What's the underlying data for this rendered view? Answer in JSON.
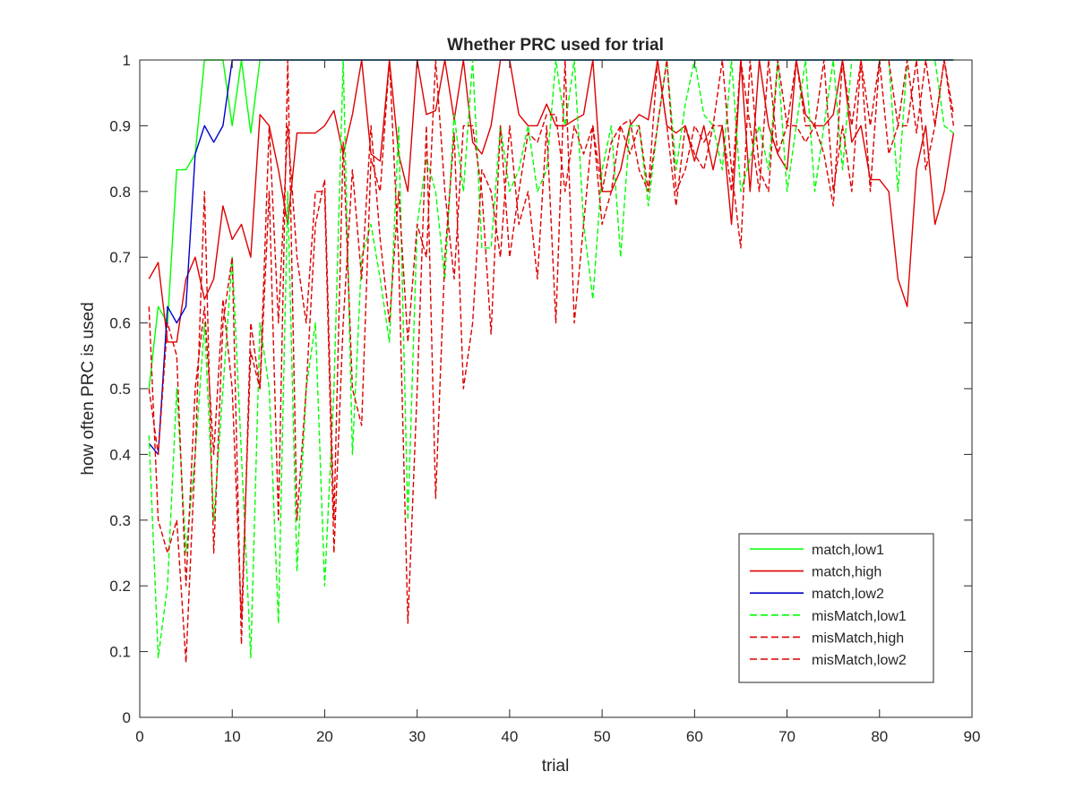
{
  "chart_data": {
    "type": "line",
    "title": "Whether PRC used for trial",
    "xlabel": "trial",
    "ylabel": "how often PRC is used",
    "xlim": [
      0,
      90
    ],
    "ylim": [
      0,
      1
    ],
    "xticks": [
      0,
      10,
      20,
      30,
      40,
      50,
      60,
      70,
      80,
      90
    ],
    "yticks": [
      0,
      0.1,
      0.2,
      0.3,
      0.4,
      0.5,
      0.6,
      0.7,
      0.8,
      0.9,
      1
    ],
    "xtick_labels": [
      "0",
      "10",
      "20",
      "30",
      "40",
      "50",
      "60",
      "70",
      "80",
      "90"
    ],
    "ytick_labels": [
      "0",
      "0.1",
      "0.2",
      "0.3",
      "0.4",
      "0.5",
      "0.6",
      "0.7",
      "0.8",
      "0.9",
      "1"
    ],
    "grid": false,
    "legend_position": "bottom-right",
    "series": [
      {
        "name": "match,low1",
        "color": "#00ff00",
        "dash": "solid",
        "x": [
          1,
          2,
          3,
          4,
          5,
          6,
          7,
          8,
          9,
          10,
          11,
          12,
          13,
          14,
          15,
          16,
          17,
          18,
          19,
          20,
          21,
          22,
          23,
          24,
          25,
          26,
          27,
          28,
          29,
          30,
          31,
          32,
          33,
          34,
          35,
          36,
          37,
          38,
          39,
          40,
          41,
          42,
          43,
          44,
          45,
          46,
          47,
          48,
          49,
          50,
          51,
          52,
          53,
          54,
          55,
          56,
          57,
          58,
          59,
          60,
          61,
          62,
          63,
          64,
          65,
          66,
          67,
          68,
          69,
          70,
          71,
          72,
          73,
          74,
          75,
          76,
          77,
          78,
          79,
          80,
          81,
          82,
          83,
          84,
          85,
          86,
          87,
          88
        ],
        "y": [
          0.5,
          0.625,
          0.6,
          0.833,
          0.833,
          0.857,
          1,
          1,
          1,
          0.9,
          1,
          0.889,
          1,
          1,
          1,
          1,
          1,
          1,
          1,
          1,
          1,
          1,
          1,
          1,
          1,
          1,
          1,
          1,
          1,
          1,
          1,
          1,
          1,
          1,
          1,
          1,
          1,
          1,
          1,
          1,
          1,
          1,
          1,
          1,
          1,
          1,
          1,
          1,
          1,
          1,
          1,
          1,
          1,
          1,
          1,
          1,
          1,
          1,
          1,
          1,
          1,
          1,
          1,
          1,
          1,
          1,
          1,
          1,
          1,
          1,
          1,
          1,
          1,
          1,
          1,
          1,
          1,
          1,
          1,
          1,
          1,
          1,
          1,
          1,
          1,
          1,
          1,
          1
        ]
      },
      {
        "name": "match,high",
        "color": "#dd0000",
        "dash": "solid",
        "x": [
          1,
          2,
          3,
          4,
          5,
          6,
          7,
          8,
          9,
          10,
          11,
          12,
          13,
          14,
          15,
          16,
          17,
          18,
          19,
          20,
          21,
          22,
          23,
          24,
          25,
          26,
          27,
          28,
          29,
          30,
          31,
          32,
          33,
          34,
          35,
          36,
          37,
          38,
          39,
          40,
          41,
          42,
          43,
          44,
          45,
          46,
          47,
          48,
          49,
          50,
          51,
          52,
          53,
          54,
          55,
          56,
          57,
          58,
          59,
          60,
          61,
          62,
          63,
          64,
          65,
          66,
          67,
          68,
          69,
          70,
          71,
          72,
          73,
          74,
          75,
          76,
          77,
          78,
          79,
          80,
          81,
          82,
          83,
          84,
          85,
          86,
          87,
          88
        ],
        "y": [
          0.667,
          0.692,
          0.571,
          0.571,
          0.667,
          0.7,
          0.636,
          0.667,
          0.778,
          0.727,
          0.75,
          0.7,
          0.917,
          0.9,
          0.833,
          0.75,
          0.889,
          0.889,
          0.889,
          0.9,
          0.923,
          0.857,
          0.917,
          1,
          0.857,
          0.846,
          1,
          0.857,
          0.8,
          1,
          0.917,
          0.923,
          1,
          0.909,
          1,
          0.875,
          0.857,
          0.9,
          1,
          1,
          0.917,
          0.9,
          0.9,
          0.933,
          0.9,
          0.9,
          0.909,
          0.917,
          1,
          0.8,
          0.8,
          0.833,
          0.9,
          0.917,
          0.909,
          1,
          0.9,
          0.889,
          0.9,
          0.846,
          0.9,
          0.833,
          0.9,
          0.75,
          1,
          0.8,
          1,
          0.9,
          0.857,
          0.833,
          1,
          0.917,
          0.9,
          0.9,
          0.917,
          1,
          0.875,
          0.9,
          0.818,
          0.818,
          0.8,
          0.667,
          0.625,
          0.833,
          0.9,
          0.75,
          0.8,
          0.889
        ]
      },
      {
        "name": "match,low2",
        "color": "#0000cc",
        "dash": "solid",
        "x": [
          1,
          2,
          3,
          4,
          5,
          6,
          7,
          8,
          9,
          10,
          11,
          12,
          13,
          14,
          15,
          16,
          17,
          18,
          19,
          20,
          21,
          22,
          23,
          24,
          25,
          26,
          27,
          28,
          29,
          30,
          31,
          32,
          33,
          34,
          35,
          36,
          37,
          38,
          39,
          40,
          41,
          42,
          43,
          44,
          45,
          46,
          47,
          48,
          49,
          50,
          51,
          52,
          53,
          54,
          55,
          56,
          57,
          58,
          59,
          60,
          61,
          62,
          63,
          64,
          65,
          66,
          67,
          68,
          69,
          70,
          71,
          72,
          73,
          74,
          75,
          76,
          77,
          78,
          79,
          80,
          81,
          82,
          83,
          84,
          85,
          86,
          87,
          88
        ],
        "y": [
          0.417,
          0.4,
          0.625,
          0.6,
          0.625,
          0.857,
          0.9,
          0.875,
          0.9,
          1,
          1,
          1,
          1,
          1,
          1,
          1,
          1,
          1,
          1,
          1,
          1,
          1,
          1,
          1,
          1,
          1,
          1,
          1,
          1,
          1,
          1,
          1,
          1,
          1,
          1,
          1,
          1,
          1,
          1,
          1,
          1,
          1,
          1,
          1,
          1,
          1,
          1,
          1,
          1,
          1,
          1,
          1,
          1,
          1,
          1,
          1,
          1,
          1,
          1,
          1,
          1,
          1,
          1,
          1,
          1,
          1,
          1,
          1,
          1,
          1,
          1,
          1,
          1,
          1,
          1,
          1,
          1,
          1,
          1,
          1,
          1,
          1,
          1,
          1,
          1,
          1,
          1,
          1
        ]
      },
      {
        "name": "misMatch,low1",
        "color": "#00ff00",
        "dash": "dashed",
        "x": [
          1,
          2,
          3,
          4,
          5,
          6,
          7,
          8,
          9,
          10,
          11,
          12,
          13,
          14,
          15,
          16,
          17,
          18,
          19,
          20,
          21,
          22,
          23,
          24,
          25,
          26,
          27,
          28,
          29,
          30,
          31,
          32,
          33,
          34,
          35,
          36,
          37,
          38,
          39,
          40,
          41,
          42,
          43,
          44,
          45,
          46,
          47,
          48,
          49,
          50,
          51,
          52,
          53,
          54,
          55,
          56,
          57,
          58,
          59,
          60,
          61,
          62,
          63,
          64,
          65,
          66,
          67,
          68,
          69,
          70,
          71,
          72,
          73,
          74,
          75,
          76,
          77,
          78,
          79,
          80,
          81,
          82,
          83,
          84,
          85,
          86,
          87,
          88
        ],
        "y": [
          0.429,
          0.0909,
          0.2,
          0.5,
          0.25,
          0.4,
          0.6,
          0.3,
          0.5,
          0.7,
          0.4,
          0.0909,
          0.6,
          0.5,
          0.143,
          0.8,
          0.222,
          0.5,
          0.6,
          0.2,
          0.5,
          1,
          0.4,
          0.7,
          0.75,
          0.667,
          0.571,
          0.9,
          0.3,
          0.75,
          0.85,
          0.8,
          0.667,
          0.917,
          0.8,
          1,
          0.714,
          0.714,
          0.9,
          0.8,
          0.833,
          0.9,
          0.8,
          0.833,
          1,
          0.9,
          1,
          0.75,
          0.636,
          0.833,
          0.9,
          0.7,
          0.9,
          0.9,
          0.778,
          0.9,
          1,
          0.833,
          0.933,
          1,
          0.917,
          0.9,
          0.833,
          1,
          0.8,
          0.85,
          0.9,
          0.833,
          1,
          0.8,
          0.9,
          1,
          0.8,
          0.9,
          1,
          0.833,
          1,
          1,
          1,
          1,
          1,
          0.8,
          1,
          1,
          1,
          1,
          0.9,
          0.889
        ]
      },
      {
        "name": "misMatch,high",
        "color": "#dd0000",
        "dash": "dashed",
        "x": [
          1,
          2,
          3,
          4,
          5,
          6,
          7,
          8,
          9,
          10,
          11,
          12,
          13,
          14,
          15,
          16,
          17,
          18,
          19,
          20,
          21,
          22,
          23,
          24,
          25,
          26,
          27,
          28,
          29,
          30,
          31,
          32,
          33,
          34,
          35,
          36,
          37,
          38,
          39,
          40,
          41,
          42,
          43,
          44,
          45,
          46,
          47,
          48,
          49,
          50,
          51,
          52,
          53,
          54,
          55,
          56,
          57,
          58,
          59,
          60,
          61,
          62,
          63,
          64,
          65,
          66,
          67,
          68,
          69,
          70,
          71,
          72,
          73,
          74,
          75,
          76,
          77,
          78,
          79,
          80,
          81,
          82,
          83,
          84,
          85,
          86,
          87,
          88
        ],
        "y": [
          0.625,
          0.3,
          0.25,
          0.3,
          0.0833,
          0.4,
          0.8,
          0.25,
          0.6,
          0.7,
          0.111,
          0.6,
          0.5,
          0.8,
          0.3,
          1,
          0.3,
          0.5,
          0.75,
          0.818,
          0.3,
          0.875,
          0.5,
          0.444,
          0.85,
          0.8,
          1,
          0.7,
          0.143,
          0.5,
          0.9,
          0.333,
          0.7,
          0.889,
          0.5,
          0.6,
          0.833,
          0.8,
          0.7,
          0.9,
          0.75,
          0.8,
          0.667,
          0.9,
          0.6,
          1,
          0.6,
          0.75,
          0.9,
          0.8,
          0.875,
          0.9,
          0.909,
          0.833,
          0.8,
          1,
          0.9,
          0.778,
          0.9,
          0.857,
          0.833,
          0.9,
          1,
          0.833,
          0.714,
          1,
          0.833,
          0.8,
          1,
          0.9,
          1,
          0.9,
          0.9,
          0.857,
          0.778,
          1,
          0.9,
          1,
          0.8,
          1,
          1,
          0.9,
          1,
          0.889,
          1,
          0.9,
          1,
          0.917
        ]
      },
      {
        "name": "misMatch,low2",
        "color": "#dd0000",
        "dash": "dashed",
        "x": [
          1,
          2,
          3,
          4,
          5,
          6,
          7,
          8,
          9,
          10,
          11,
          12,
          13,
          14,
          15,
          16,
          17,
          18,
          19,
          20,
          21,
          22,
          23,
          24,
          25,
          26,
          27,
          28,
          29,
          30,
          31,
          32,
          33,
          34,
          35,
          36,
          37,
          38,
          39,
          40,
          41,
          42,
          43,
          44,
          45,
          46,
          47,
          48,
          49,
          50,
          51,
          52,
          53,
          54,
          55,
          56,
          57,
          58,
          59,
          60,
          61,
          62,
          63,
          64,
          65,
          66,
          67,
          68,
          69,
          70,
          71,
          72,
          73,
          74,
          75,
          76,
          77,
          78,
          79,
          80,
          81,
          82,
          83,
          84,
          85,
          86,
          87,
          88
        ],
        "y": [
          0.5,
          0.4,
          0.6,
          0.55,
          0.2,
          0.5,
          0.625,
          0.4,
          0.636,
          0.5,
          0.15,
          0.556,
          0.5,
          0.9,
          0.6,
          0.9,
          0.7,
          0.6,
          0.8,
          0.8,
          0.25,
          0.6,
          0.833,
          0.667,
          0.9,
          0.727,
          0.6,
          0.8,
          0.571,
          0.75,
          0.7,
          1,
          0.8,
          0.667,
          0.9,
          0.9,
          0.8,
          0.583,
          0.9,
          0.7,
          0.8,
          0.889,
          0.875,
          0.917,
          0.917,
          0.8,
          0.9,
          0.857,
          0.9,
          0.75,
          0.8,
          0.9,
          0.857,
          0.9,
          0.8,
          0.9,
          1,
          0.8,
          0.833,
          0.9,
          0.875,
          0.9,
          0.9,
          0.8,
          1,
          0.9,
          0.8,
          1,
          0.857,
          0.9,
          0.9,
          0.875,
          0.9,
          1,
          0.8,
          0.9,
          0.8,
          1,
          0.9,
          1,
          0.857,
          0.9,
          0.9,
          1,
          0.833,
          0.9,
          1,
          0.9
        ]
      }
    ]
  }
}
